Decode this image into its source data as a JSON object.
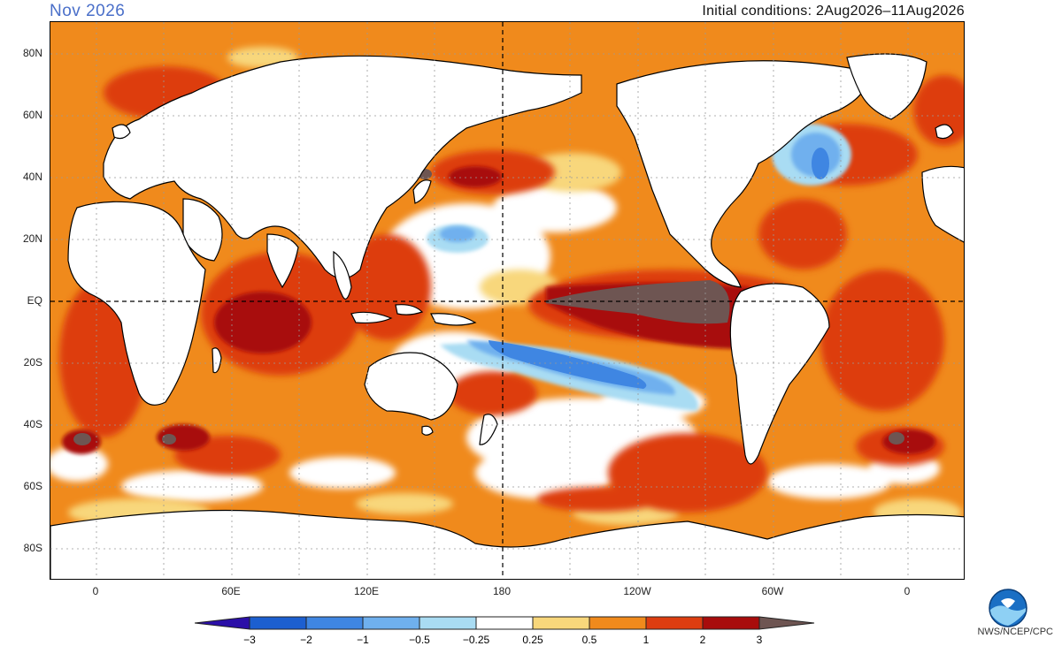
{
  "header": {
    "title": "Nov 2026",
    "subtitle": "Initial conditions: 2Aug2026–11Aug2026"
  },
  "axes": {
    "lat_labels": [
      "80N",
      "60N",
      "40N",
      "20N",
      "EQ",
      "20S",
      "40S",
      "60S",
      "80S"
    ],
    "lon_labels": [
      "0",
      "60E",
      "120E",
      "180",
      "120W",
      "60W",
      "0"
    ]
  },
  "colorbar": {
    "ticks": [
      "−3",
      "−2",
      "−1",
      "−0.5",
      "−0.25",
      "0.25",
      "0.5",
      "1",
      "2",
      "3"
    ],
    "colors": [
      "#2b0fa8",
      "#1c5fd0",
      "#3f86e2",
      "#6fb0ee",
      "#a9dcf3",
      "#ffffff",
      "#f8d77b",
      "#f08a1c",
      "#dd3d10",
      "#a80c0c",
      "#6e5552"
    ]
  },
  "credit": "NWS/NCEP/CPC",
  "logo_icon": "noaa-logo-icon"
}
